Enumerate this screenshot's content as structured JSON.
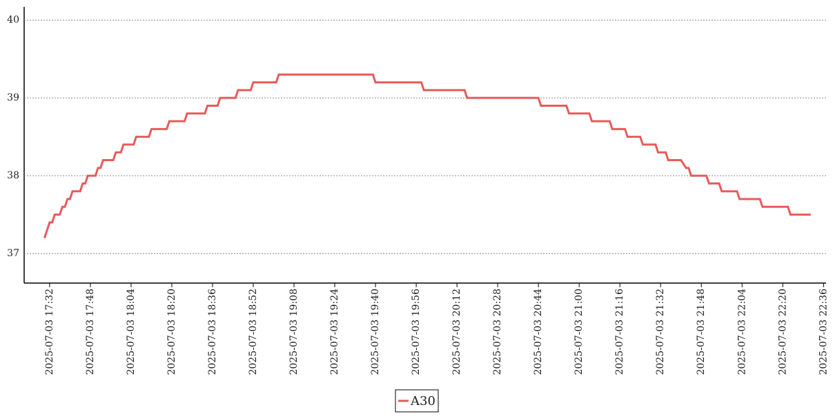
{
  "chart_data": {
    "type": "line",
    "x": [
      "2025-07-03 17:30",
      "2025-07-03 17:31",
      "2025-07-03 17:32",
      "2025-07-03 17:33",
      "2025-07-03 17:34",
      "2025-07-03 17:36",
      "2025-07-03 17:37",
      "2025-07-03 17:38",
      "2025-07-03 17:39",
      "2025-07-03 17:40",
      "2025-07-03 17:41",
      "2025-07-03 17:44",
      "2025-07-03 17:45",
      "2025-07-03 17:46",
      "2025-07-03 17:47",
      "2025-07-03 17:50",
      "2025-07-03 17:51",
      "2025-07-03 17:52",
      "2025-07-03 17:53",
      "2025-07-03 17:57",
      "2025-07-03 17:58",
      "2025-07-03 18:00",
      "2025-07-03 18:01",
      "2025-07-03 18:05",
      "2025-07-03 18:06",
      "2025-07-03 18:11",
      "2025-07-03 18:12",
      "2025-07-03 18:18",
      "2025-07-03 18:19",
      "2025-07-03 18:25",
      "2025-07-03 18:26",
      "2025-07-03 18:33",
      "2025-07-03 18:34",
      "2025-07-03 18:38",
      "2025-07-03 18:39",
      "2025-07-03 18:45",
      "2025-07-03 18:46",
      "2025-07-03 18:51",
      "2025-07-03 18:52",
      "2025-07-03 19:01",
      "2025-07-03 19:02",
      "2025-07-03 19:39",
      "2025-07-03 19:40",
      "2025-07-03 19:58",
      "2025-07-03 19:59",
      "2025-07-03 20:15",
      "2025-07-03 20:16",
      "2025-07-03 20:44",
      "2025-07-03 20:45",
      "2025-07-03 20:55",
      "2025-07-03 20:56",
      "2025-07-03 21:04",
      "2025-07-03 21:05",
      "2025-07-03 21:12",
      "2025-07-03 21:13",
      "2025-07-03 21:18",
      "2025-07-03 21:19",
      "2025-07-03 21:24",
      "2025-07-03 21:25",
      "2025-07-03 21:30",
      "2025-07-03 21:31",
      "2025-07-03 21:34",
      "2025-07-03 21:35",
      "2025-07-03 21:40",
      "2025-07-03 21:42",
      "2025-07-03 21:43",
      "2025-07-03 21:44",
      "2025-07-03 21:50",
      "2025-07-03 21:51",
      "2025-07-03 21:55",
      "2025-07-03 21:56",
      "2025-07-03 22:02",
      "2025-07-03 22:03",
      "2025-07-03 22:11",
      "2025-07-03 22:12",
      "2025-07-03 22:22",
      "2025-07-03 22:23",
      "2025-07-03 22:31"
    ],
    "series": [
      {
        "name": "A30",
        "color": "#e85a5a",
        "values": [
          37.2,
          37.3,
          37.4,
          37.4,
          37.5,
          37.5,
          37.6,
          37.6,
          37.7,
          37.7,
          37.8,
          37.8,
          37.9,
          37.9,
          38.0,
          38.0,
          38.1,
          38.1,
          38.2,
          38.2,
          38.3,
          38.3,
          38.4,
          38.4,
          38.5,
          38.5,
          38.6,
          38.6,
          38.7,
          38.7,
          38.8,
          38.8,
          38.9,
          38.9,
          39.0,
          39.0,
          39.1,
          39.1,
          39.2,
          39.2,
          39.3,
          39.3,
          39.2,
          39.2,
          39.1,
          39.1,
          39.0,
          39.0,
          38.9,
          38.9,
          38.8,
          38.8,
          38.7,
          38.7,
          38.6,
          38.6,
          38.5,
          38.5,
          38.4,
          38.4,
          38.3,
          38.3,
          38.2,
          38.2,
          38.1,
          38.1,
          38.0,
          38.0,
          37.9,
          37.9,
          37.8,
          37.8,
          37.7,
          37.7,
          37.6,
          37.6,
          37.5,
          37.5
        ]
      }
    ],
    "xlim": [
      "2025-07-03 17:22",
      "2025-07-03 22:37"
    ],
    "xticks": [
      "2025-07-03 17:32",
      "2025-07-03 17:48",
      "2025-07-03 18:04",
      "2025-07-03 18:20",
      "2025-07-03 18:36",
      "2025-07-03 18:52",
      "2025-07-03 19:08",
      "2025-07-03 19:24",
      "2025-07-03 19:40",
      "2025-07-03 19:56",
      "2025-07-03 20:12",
      "2025-07-03 20:28",
      "2025-07-03 20:44",
      "2025-07-03 21:00",
      "2025-07-03 21:16",
      "2025-07-03 21:32",
      "2025-07-03 21:48",
      "2025-07-03 22:04",
      "2025-07-03 22:20",
      "2025-07-03 22:36"
    ],
    "ylim": [
      36.62,
      40.17
    ],
    "yticks": [
      37,
      38,
      39,
      40
    ],
    "grid": true
  }
}
